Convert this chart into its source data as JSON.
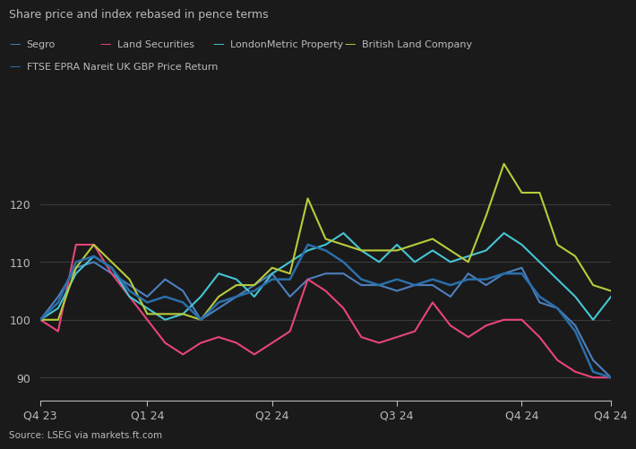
{
  "title": "Share price and index rebased in pence terms",
  "source": "Source: LSEG via markets.ft.com",
  "yticks": [
    90,
    100,
    110,
    120
  ],
  "ylim": [
    86,
    131
  ],
  "xtick_labels": [
    "Q4 23",
    "Q1 24",
    "Q2 24",
    "Q3 24",
    "Q4 24",
    "Q4 24"
  ],
  "xtick_positions": [
    0,
    6,
    13,
    20,
    27,
    32
  ],
  "background_color": "#1a1a1a",
  "grid_color": "#3a3a3a",
  "text_color": "#bbbbbb",
  "legend": [
    {
      "label": "Segro",
      "color": "#4e7fbe"
    },
    {
      "label": "Land Securities",
      "color": "#e8457a"
    },
    {
      "label": "LondonMetric Property",
      "color": "#45c5d4"
    },
    {
      "label": "British Land Company",
      "color": "#b8cc3a"
    },
    {
      "label": "FTSE EPRA Nareit UK GBP Price Return",
      "color": "#2a6faa"
    }
  ],
  "n_points": 33,
  "segro": [
    100,
    104,
    109,
    110,
    108,
    106,
    104,
    107,
    105,
    100,
    102,
    104,
    106,
    108,
    104,
    107,
    108,
    108,
    106,
    106,
    105,
    106,
    106,
    104,
    108,
    106,
    108,
    109,
    103,
    102,
    99,
    93,
    90
  ],
  "land_securities": [
    100,
    98,
    113,
    113,
    108,
    104,
    100,
    96,
    94,
    96,
    97,
    96,
    94,
    96,
    98,
    107,
    105,
    102,
    97,
    96,
    97,
    98,
    103,
    99,
    97,
    99,
    100,
    100,
    97,
    93,
    91,
    90,
    90
  ],
  "londonmetric": [
    100,
    102,
    108,
    111,
    109,
    104,
    102,
    100,
    101,
    104,
    108,
    107,
    104,
    108,
    110,
    112,
    113,
    115,
    112,
    110,
    113,
    110,
    112,
    110,
    111,
    112,
    115,
    113,
    110,
    107,
    104,
    100,
    104
  ],
  "british_land": [
    100,
    100,
    109,
    113,
    110,
    107,
    101,
    101,
    101,
    100,
    104,
    106,
    106,
    109,
    108,
    121,
    114,
    113,
    112,
    112,
    112,
    113,
    114,
    112,
    110,
    118,
    127,
    122,
    122,
    113,
    111,
    106,
    105
  ],
  "ftse_epra": [
    100,
    103,
    110,
    111,
    109,
    105,
    103,
    104,
    103,
    100,
    103,
    104,
    105,
    107,
    107,
    113,
    112,
    110,
    107,
    106,
    107,
    106,
    107,
    106,
    107,
    107,
    108,
    108,
    104,
    102,
    98,
    91,
    90
  ]
}
